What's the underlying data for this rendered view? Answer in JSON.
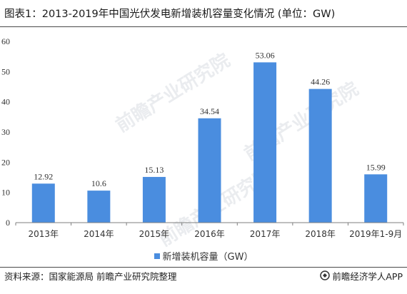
{
  "title": "图表1：2013-2019年中国光伏发电新增装机容量变化情况 (单位：GW)",
  "watermark_text": "前瞻产业研究院",
  "source": "资料来源：国家能源局 前瞻产业研究院整理",
  "brand": "前瞻经济学人APP",
  "colors": {
    "bar": "#4a8ddf",
    "axis": "#7f7f7f",
    "text": "#333333"
  },
  "chart_data": {
    "type": "bar",
    "title": "图表1：2013-2019年中国光伏发电新增装机容量变化情况 (单位：GW)",
    "categories": [
      "2013年",
      "2014年",
      "2015年",
      "2016年",
      "2017年",
      "2018年",
      "2019年1-9月"
    ],
    "series": [
      {
        "name": "新增装机容量（GW）",
        "values": [
          12.92,
          10.6,
          15.13,
          34.54,
          53.06,
          44.26,
          15.99
        ]
      }
    ],
    "value_labels": [
      "12.92",
      "10.6",
      "15.13",
      "34.54",
      "53.06",
      "44.26",
      "15.99"
    ],
    "ylim": [
      0,
      60
    ],
    "yticks": [
      0,
      10,
      20,
      30,
      40,
      50,
      60
    ],
    "grid": false,
    "legend_position": "bottom-center"
  }
}
